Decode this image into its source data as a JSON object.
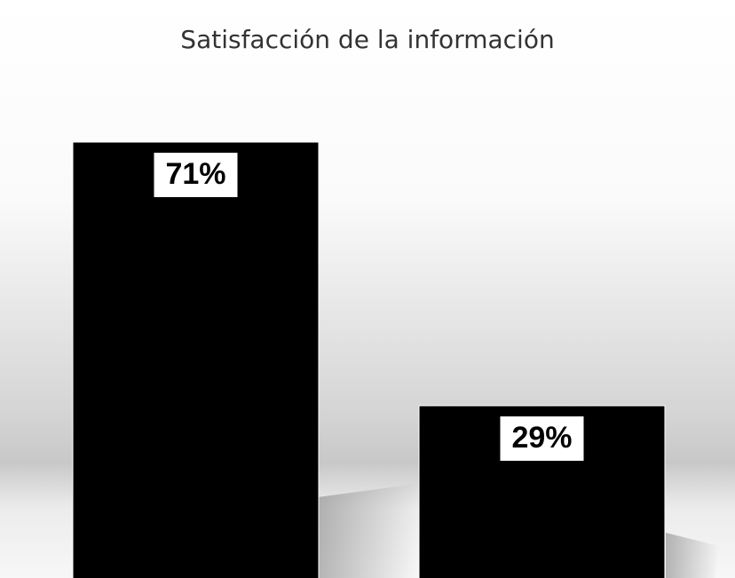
{
  "chart_data": {
    "type": "bar",
    "title": "Satisfacción de la información",
    "categories": [
      null,
      null
    ],
    "values": [
      71,
      29
    ],
    "value_labels": [
      "71%",
      "29%"
    ],
    "color": "#000000"
  }
}
